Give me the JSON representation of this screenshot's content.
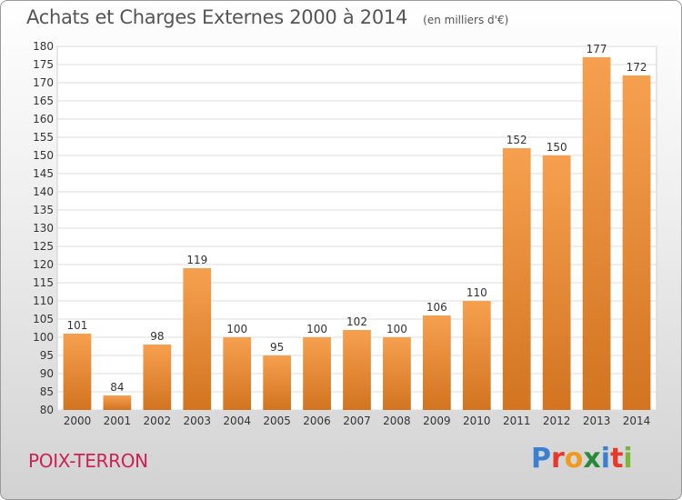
{
  "header": {
    "title": "Achats et Charges Externes 2000 à 2014",
    "unit": "(en milliers d'€)"
  },
  "footer": {
    "commune": "POIX-TERRON",
    "brand": "Proxiti"
  },
  "colors": {
    "bar_light": "#f6a04f",
    "bar_dark": "#d27420",
    "commune": "#cc2255",
    "brand_p": "#3a7fd0",
    "brand_r": "#e6392d",
    "brand_o": "#f29a1e",
    "brand_x": "#2a8a3a",
    "brand_i": "#3a7fd0",
    "brand_t": "#e6392d",
    "brand_i2": "#7ab83a"
  },
  "chart_data": {
    "type": "bar",
    "categories": [
      "2000",
      "2001",
      "2002",
      "2003",
      "2004",
      "2005",
      "2006",
      "2007",
      "2008",
      "2009",
      "2010",
      "2011",
      "2012",
      "2013",
      "2014"
    ],
    "values": [
      101,
      84,
      98,
      119,
      100,
      95,
      100,
      102,
      100,
      106,
      110,
      152,
      150,
      177,
      172
    ],
    "ylim": [
      80,
      180
    ],
    "ytick_step": 5,
    "grid": true,
    "legend": "none"
  }
}
